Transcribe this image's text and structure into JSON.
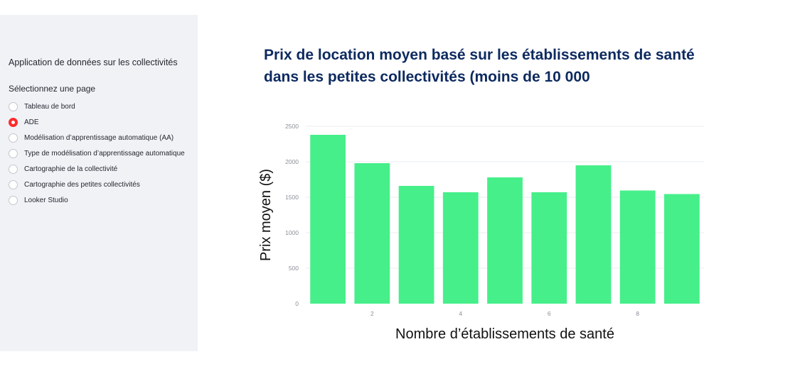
{
  "sidebar": {
    "app_title": "Application de données sur les collectivités",
    "select_label": "Sélectionnez une page",
    "items": [
      {
        "label": "Tableau de bord",
        "selected": false
      },
      {
        "label": "ADE",
        "selected": true
      },
      {
        "label": "Modélisation d’apprentissage automatique (AA)",
        "selected": false
      },
      {
        "label": "Type de modélisation d’apprentissage automatique",
        "selected": false
      },
      {
        "label": "Cartographie de la collectivité",
        "selected": false
      },
      {
        "label": "Cartographie des petites collectivités",
        "selected": false
      },
      {
        "label": "Looker Studio",
        "selected": false
      }
    ]
  },
  "colors": {
    "bar": "#46ef8a",
    "radio_selected": "#ff2b2b",
    "title": "#0d2a5f",
    "sidebar_bg": "#f0f2f6"
  },
  "chart_data": {
    "type": "bar",
    "title": "Prix de location moyen basé sur les établissements de santé dans les petites collectivités (moins de 10 000",
    "xlabel": "Nombre d’établissements de santé",
    "ylabel": "Prix moyen ($)",
    "x": [
      1,
      2,
      3,
      4,
      5,
      6,
      7,
      8,
      9
    ],
    "values": [
      2380,
      1980,
      1660,
      1570,
      1780,
      1570,
      1950,
      1595,
      1545
    ],
    "ylim": [
      0,
      2500
    ],
    "yticks": [
      0,
      500,
      1000,
      1500,
      2000,
      2500
    ],
    "xticks": [
      2,
      4,
      6,
      8
    ],
    "grid": true
  }
}
